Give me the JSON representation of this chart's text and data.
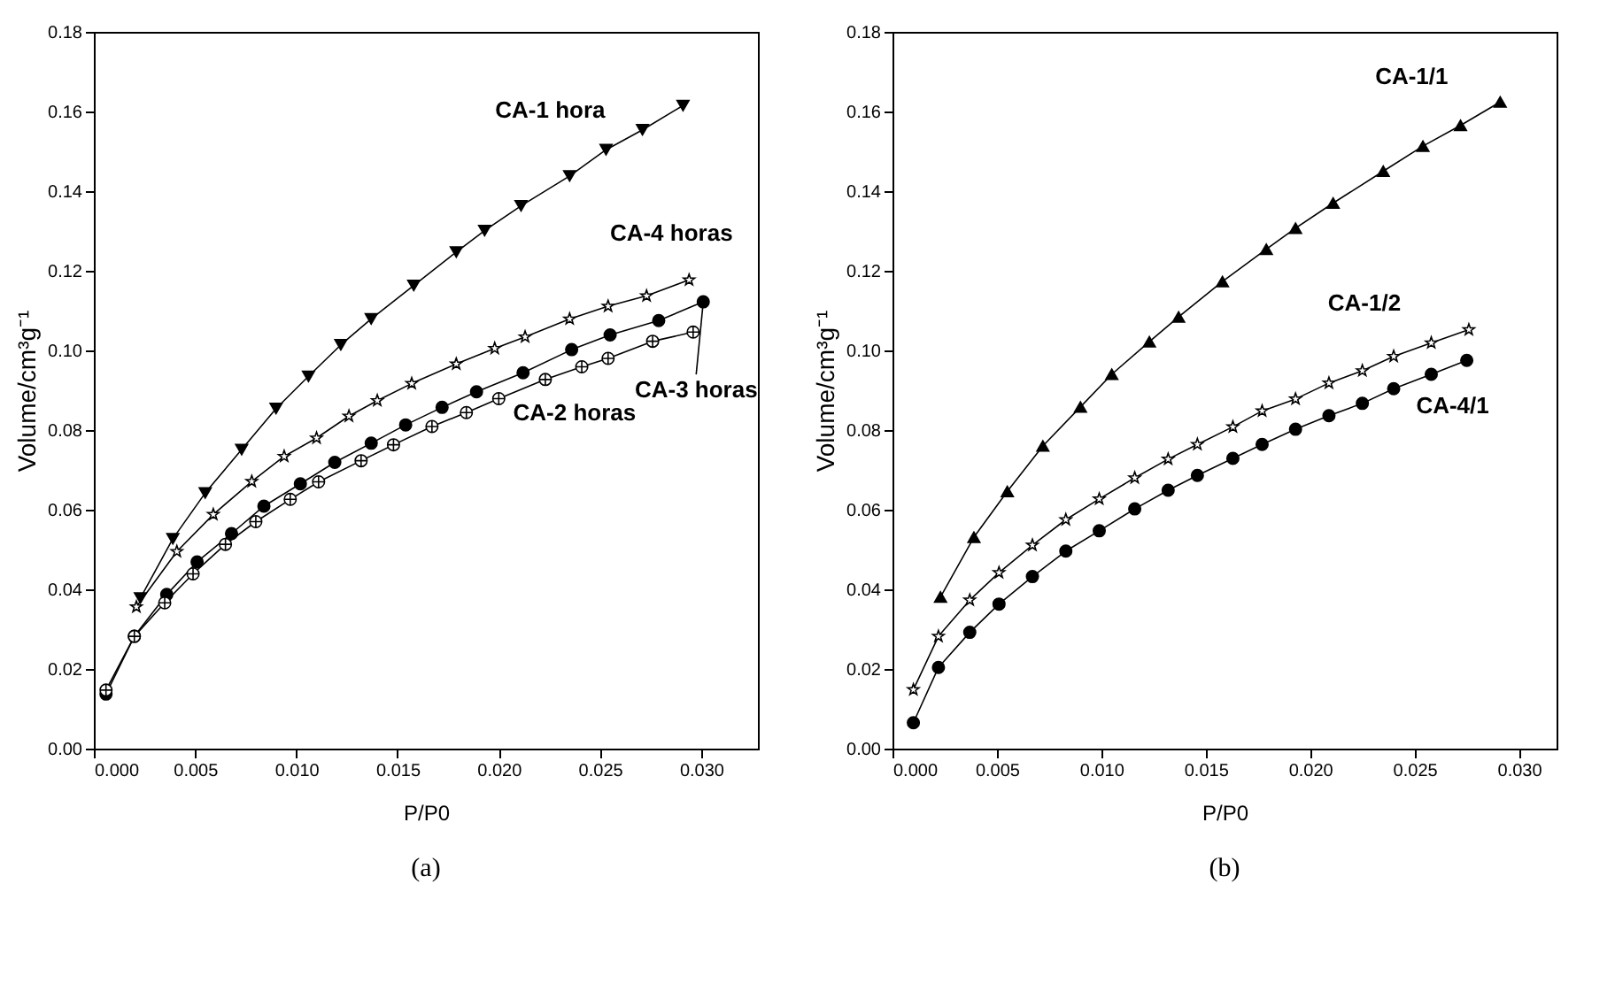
{
  "chart_data": [
    {
      "type": "line",
      "title": "(a)",
      "xlabel": "P/P0",
      "ylabel": "Volume/cm³g⁻¹",
      "xlim": [
        0,
        0.0328
      ],
      "ylim": [
        0,
        0.18
      ],
      "xticks": [
        {
          "value": 0,
          "label": "0.000"
        },
        {
          "value": 0.005,
          "label": "0.005"
        },
        {
          "value": 0.01,
          "label": "0.010"
        },
        {
          "value": 0.015,
          "label": "0.015"
        },
        {
          "value": 0.02,
          "label": "0.020"
        },
        {
          "value": 0.025,
          "label": "0.025"
        },
        {
          "value": 0.03,
          "label": "0.030"
        }
      ],
      "yticks": [
        {
          "value": 0,
          "label": "0.00"
        },
        {
          "value": 0.02,
          "label": "0.02"
        },
        {
          "value": 0.04,
          "label": "0.04"
        },
        {
          "value": 0.06,
          "label": "0.06"
        },
        {
          "value": 0.08,
          "label": "0.08"
        },
        {
          "value": 0.1,
          "label": "0.10"
        },
        {
          "value": 0.12,
          "label": "0.12"
        },
        {
          "value": 0.14,
          "label": "0.14"
        },
        {
          "value": 0.16,
          "label": "0.16"
        },
        {
          "value": 0.18,
          "label": "0.18"
        }
      ],
      "series": [
        {
          "name": "CA-1 hora",
          "color": "#000000",
          "marker": "triangle",
          "x": [
            0.0023,
            0.0039,
            0.0055,
            0.0073,
            0.009,
            0.0106,
            0.0122,
            0.0137,
            0.0158,
            0.0179,
            0.0193,
            0.0211,
            0.0235,
            0.0253,
            0.0271,
            0.0291
          ],
          "values": [
            0.0378,
            0.0527,
            0.0642,
            0.0751,
            0.0854,
            0.0935,
            0.1014,
            0.1079,
            0.1163,
            0.1247,
            0.1301,
            0.1363,
            0.1438,
            0.1504,
            0.1554,
            0.1615
          ]
        },
        {
          "name": "CA-4 horas",
          "color": "#000000",
          "marker": "star",
          "x": [
            0.0021,
            0.0041,
            0.0059,
            0.0078,
            0.0094,
            0.011,
            0.0126,
            0.014,
            0.0157,
            0.0179,
            0.0198,
            0.0213,
            0.0235,
            0.0254,
            0.0273,
            0.0294
          ],
          "values": [
            0.0356,
            0.0495,
            0.0588,
            0.0671,
            0.0734,
            0.078,
            0.0835,
            0.0874,
            0.0917,
            0.0966,
            0.1005,
            0.1034,
            0.1079,
            0.1111,
            0.1137,
            0.1177
          ]
        },
        {
          "name": "CA-3 horas",
          "color": "#000000",
          "marker": "circle",
          "x": [
            0.0006,
            0.002,
            0.0036,
            0.0051,
            0.0068,
            0.0084,
            0.0102,
            0.0119,
            0.0137,
            0.0154,
            0.0172,
            0.0189,
            0.0212,
            0.0236,
            0.0255,
            0.0279,
            0.0301
          ],
          "values": [
            0.0137,
            0.0282,
            0.0387,
            0.0469,
            0.054,
            0.0609,
            0.0665,
            0.0719,
            0.0767,
            0.0813,
            0.0857,
            0.0896,
            0.0944,
            0.1002,
            0.1039,
            0.1075,
            0.1122
          ]
        },
        {
          "name": "CA-2 horas",
          "color": "#000000",
          "marker": "cross",
          "x": [
            0.0006,
            0.002,
            0.0035,
            0.0049,
            0.0065,
            0.008,
            0.0097,
            0.0111,
            0.0132,
            0.0148,
            0.0167,
            0.0184,
            0.02,
            0.0223,
            0.0241,
            0.0254,
            0.0276,
            0.0296
          ],
          "values": [
            0.0147,
            0.0282,
            0.0366,
            0.0439,
            0.0513,
            0.057,
            0.0626,
            0.067,
            0.0723,
            0.0763,
            0.0809,
            0.0844,
            0.0879,
            0.0927,
            0.0959,
            0.098,
            0.1023,
            0.1046
          ]
        }
      ]
    },
    {
      "type": "line",
      "title": "(b)",
      "xlabel": "P/P0",
      "ylabel": "Volume/cm³g⁻¹",
      "xlim": [
        0,
        0.0318
      ],
      "ylim": [
        0,
        0.18
      ],
      "xticks": [
        {
          "value": 0,
          "label": "0.000"
        },
        {
          "value": 0.005,
          "label": "0.005"
        },
        {
          "value": 0.01,
          "label": "0.010"
        },
        {
          "value": 0.015,
          "label": "0.015"
        },
        {
          "value": 0.02,
          "label": "0.020"
        },
        {
          "value": 0.025,
          "label": "0.025"
        },
        {
          "value": 0.03,
          "label": "0.030"
        }
      ],
      "yticks": [
        {
          "value": 0,
          "label": "0.00"
        },
        {
          "value": 0.02,
          "label": "0.02"
        },
        {
          "value": 0.04,
          "label": "0.04"
        },
        {
          "value": 0.06,
          "label": "0.06"
        },
        {
          "value": 0.08,
          "label": "0.08"
        },
        {
          "value": 0.1,
          "label": "0.10"
        },
        {
          "value": 0.12,
          "label": "0.12"
        },
        {
          "value": 0.14,
          "label": "0.14"
        },
        {
          "value": 0.16,
          "label": "0.16"
        },
        {
          "value": 0.18,
          "label": "0.18"
        }
      ],
      "series": [
        {
          "name": "CA-1/1",
          "color": "#000000",
          "marker": "triangle",
          "x": [
            0.0023,
            0.0039,
            0.0055,
            0.0072,
            0.009,
            0.0105,
            0.0123,
            0.0137,
            0.0158,
            0.0179,
            0.0193,
            0.0211,
            0.0235,
            0.0254,
            0.0272,
            0.0291
          ],
          "values": [
            0.0381,
            0.0531,
            0.0646,
            0.076,
            0.0858,
            0.094,
            0.1022,
            0.1084,
            0.1173,
            0.1254,
            0.1307,
            0.137,
            0.145,
            0.1513,
            0.1565,
            0.1624
          ]
        },
        {
          "name": "CA-1/2",
          "color": "#000000",
          "marker": "star",
          "x": [
            0.001,
            0.0022,
            0.0037,
            0.0051,
            0.0067,
            0.0083,
            0.0099,
            0.0116,
            0.0132,
            0.0146,
            0.0163,
            0.0177,
            0.0193,
            0.0209,
            0.0225,
            0.024,
            0.0258,
            0.0276
          ],
          "values": [
            0.0148,
            0.0282,
            0.0373,
            0.0442,
            0.0511,
            0.0575,
            0.0627,
            0.068,
            0.0727,
            0.0764,
            0.0808,
            0.0848,
            0.0878,
            0.0918,
            0.0949,
            0.0985,
            0.1019,
            0.1052
          ]
        },
        {
          "name": "CA-4/1",
          "color": "#000000",
          "marker": "circle",
          "x": [
            0.001,
            0.0022,
            0.0037,
            0.0051,
            0.0067,
            0.0083,
            0.0099,
            0.0116,
            0.0132,
            0.0146,
            0.0163,
            0.0177,
            0.0193,
            0.0209,
            0.0225,
            0.024,
            0.0258,
            0.0275
          ],
          "values": [
            0.0065,
            0.0204,
            0.0292,
            0.0363,
            0.0432,
            0.0496,
            0.0547,
            0.0602,
            0.0649,
            0.0686,
            0.0729,
            0.0764,
            0.0802,
            0.0836,
            0.0867,
            0.0904,
            0.094,
            0.0975
          ]
        }
      ]
    }
  ]
}
